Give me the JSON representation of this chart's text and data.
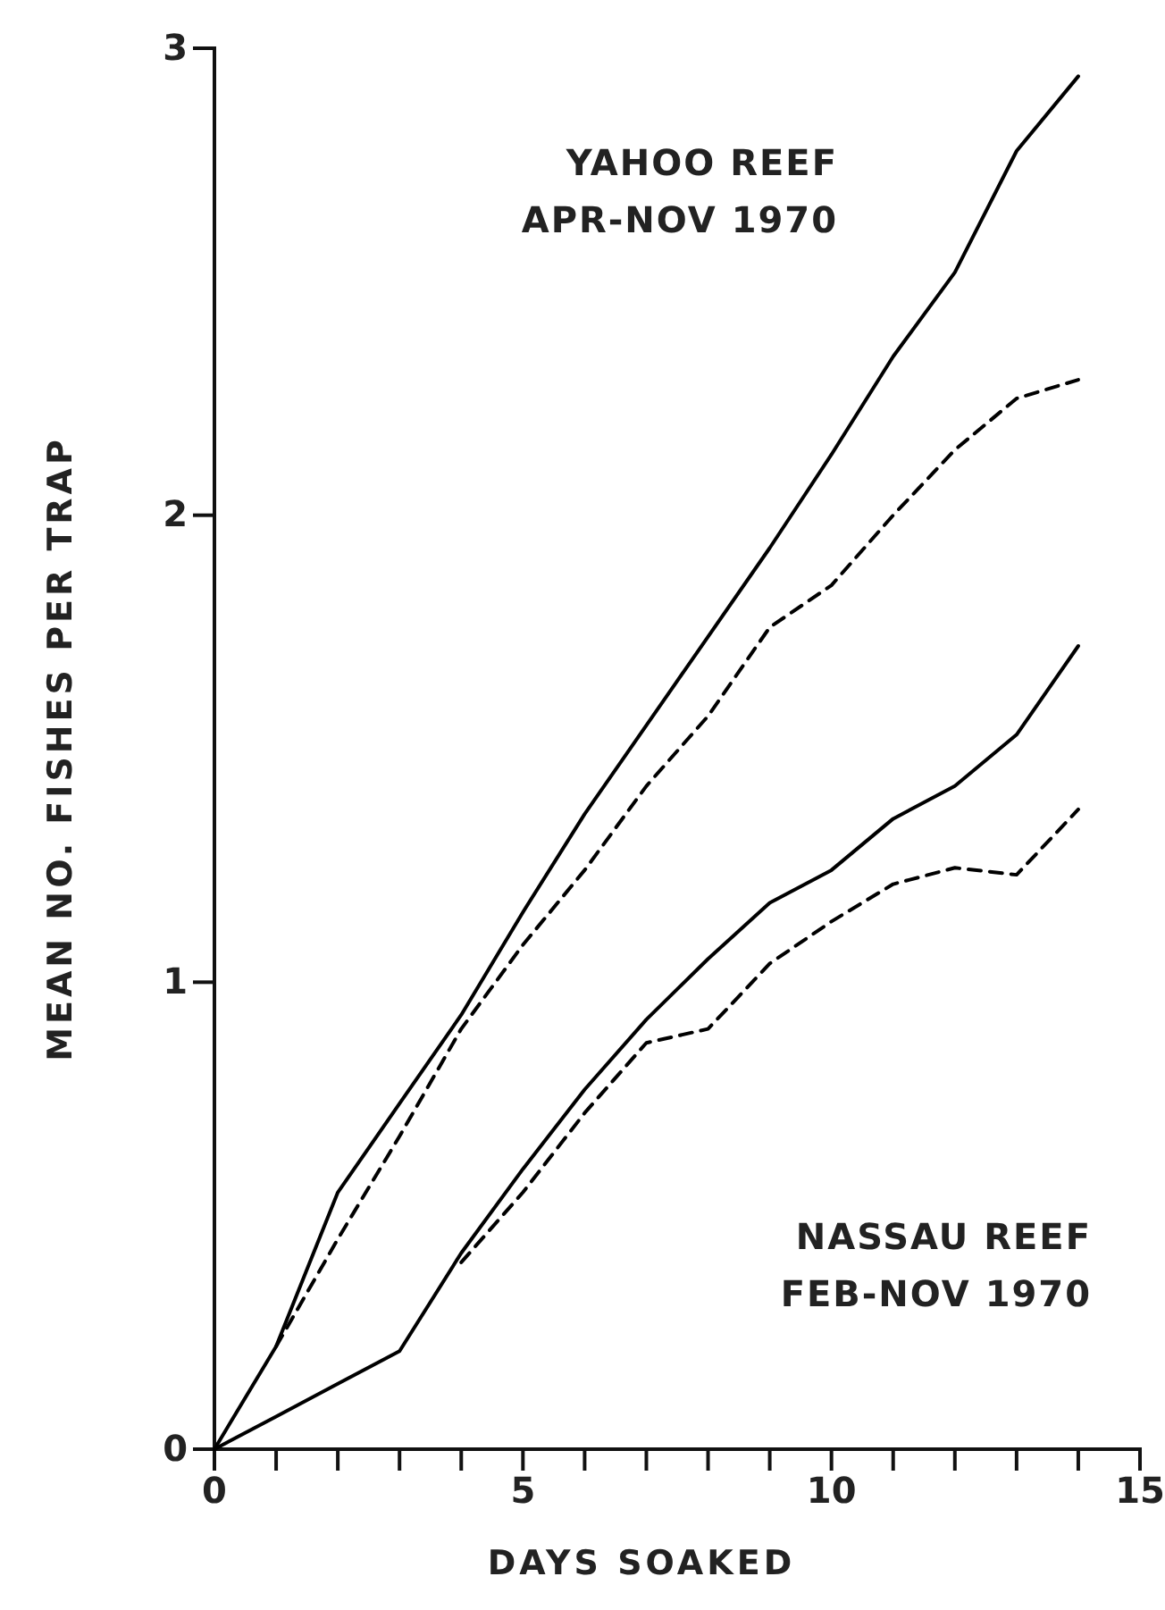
{
  "chart_data": {
    "type": "line",
    "xlabel": "DAYS SOAKED",
    "ylabel": "MEAN NO. FISHES PER TRAP",
    "xlim": [
      0,
      15
    ],
    "ylim": [
      0,
      3
    ],
    "xticks": [
      0,
      {
        "value": 1,
        "label": null
      },
      {
        "value": 2,
        "label": null
      },
      {
        "value": 3,
        "label": null
      },
      {
        "value": 4,
        "label": null
      },
      5,
      {
        "value": 6,
        "label": null
      },
      {
        "value": 7,
        "label": null
      },
      {
        "value": 8,
        "label": null
      },
      {
        "value": 9,
        "label": null
      },
      10,
      {
        "value": 11,
        "label": null
      },
      {
        "value": 12,
        "label": null
      },
      {
        "value": 13,
        "label": null
      },
      {
        "value": 14,
        "label": null
      },
      15
    ],
    "yticks": [
      0,
      1,
      2,
      3
    ],
    "grid": false,
    "marker": "none",
    "series": [
      {
        "color": "#000000",
        "line_style": "solid",
        "x": [
          0,
          1,
          2,
          3,
          4,
          5,
          6,
          7,
          8,
          9,
          10,
          11,
          12,
          13,
          14
        ],
        "values": [
          0,
          0.22,
          0.55,
          0.74,
          0.93,
          1.15,
          1.36,
          1.55,
          1.74,
          1.93,
          2.13,
          2.34,
          2.52,
          2.78,
          2.94
        ]
      },
      {
        "color": "#000000",
        "line_style": "dashed",
        "x": [
          1,
          2,
          3,
          4,
          5,
          6,
          7,
          8,
          9,
          10,
          11,
          12,
          13,
          14
        ],
        "values": [
          0.22,
          0.45,
          0.67,
          0.9,
          1.08,
          1.24,
          1.42,
          1.57,
          1.76,
          1.85,
          2.0,
          2.14,
          2.25,
          2.29
        ]
      },
      {
        "color": "#000000",
        "line_style": "solid",
        "x": [
          0,
          1,
          2,
          3,
          4,
          5,
          6,
          7,
          8,
          9,
          10,
          11,
          12,
          13,
          14
        ],
        "values": [
          0,
          0.07,
          0.14,
          0.21,
          0.42,
          0.6,
          0.77,
          0.92,
          1.05,
          1.17,
          1.24,
          1.35,
          1.42,
          1.53,
          1.72
        ]
      },
      {
        "color": "#000000",
        "line_style": "dashed",
        "x": [
          4,
          5,
          6,
          7,
          8,
          9,
          10,
          11,
          12,
          13,
          14
        ],
        "values": [
          0.4,
          0.55,
          0.72,
          0.87,
          0.9,
          1.04,
          1.13,
          1.21,
          1.245,
          1.23,
          1.37
        ]
      }
    ],
    "annotations": [
      "YAHOO REEF",
      "APR-NOV 1970",
      "NASSAU REEF",
      "FEB-NOV 1970"
    ]
  }
}
